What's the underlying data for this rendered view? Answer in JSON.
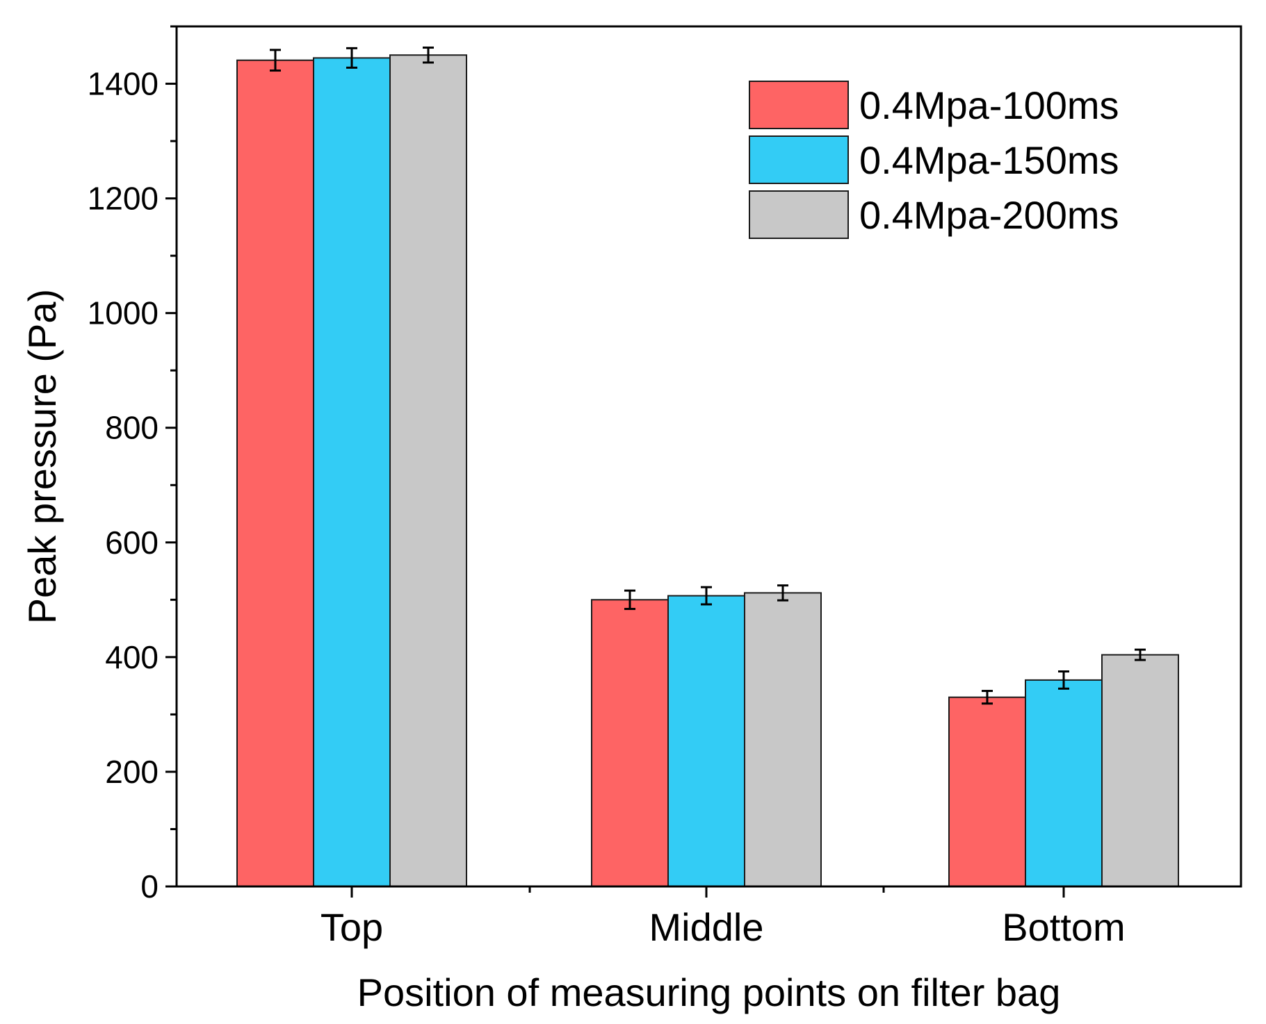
{
  "chart_data": {
    "type": "bar",
    "title": "",
    "xlabel": "Position of measuring points on filter bag",
    "ylabel": "Peak pressure (Pa)",
    "categories": [
      "Top",
      "Middle",
      "Bottom"
    ],
    "ylim": [
      0,
      1500
    ],
    "yticks": [
      0,
      200,
      400,
      600,
      800,
      1000,
      1200,
      1400
    ],
    "y_minor_step": 100,
    "grid": false,
    "legend_position": "top-right",
    "series": [
      {
        "name": "0.4Mpa-100ms",
        "color": "#fe6464",
        "values": [
          1441,
          500,
          330
        ],
        "errors": [
          18,
          16,
          11
        ]
      },
      {
        "name": "0.4Mpa-150ms",
        "color": "#33ccf5",
        "values": [
          1445,
          507,
          360
        ],
        "errors": [
          17,
          15,
          15
        ]
      },
      {
        "name": "0.4Mpa-200ms",
        "color": "#c8c8c8",
        "values": [
          1450,
          512,
          404
        ],
        "errors": [
          13,
          13,
          9
        ]
      }
    ]
  }
}
